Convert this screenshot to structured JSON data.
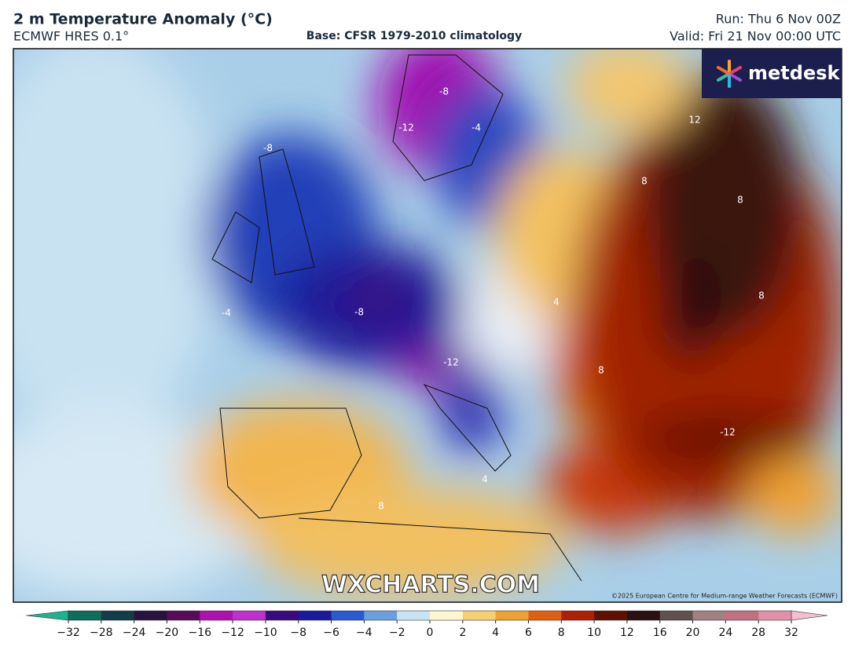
{
  "header": {
    "title": "2 m Temperature Anomaly (°C)",
    "model": "ECMWF HRES 0.1°",
    "base": "Base: CFSR 1979-2010 climatology",
    "run": "Run: Thu 6 Nov 00Z",
    "valid": "Valid: Fri 21 Nov 00:00 UTC"
  },
  "logo": "metdesk",
  "watermark": "WXCHARTS.COM",
  "copyright": "©2025 European Centre for Medium-range Weather Forecasts (ECMWF)",
  "map": {
    "contour_labels": [
      "12",
      "-12",
      "-8",
      "-4",
      "-8",
      "-8",
      "8",
      "8",
      "8",
      "-12",
      "-12",
      "4",
      "-4",
      "8",
      "4",
      "8"
    ]
  },
  "colorbar": {
    "ticks": [
      {
        "value": -32,
        "label": "−32"
      },
      {
        "value": -28,
        "label": "−28"
      },
      {
        "value": -24,
        "label": "−24"
      },
      {
        "value": -20,
        "label": "−20"
      },
      {
        "value": -16,
        "label": "−16"
      },
      {
        "value": -12,
        "label": "−12"
      },
      {
        "value": -10,
        "label": "−10"
      },
      {
        "value": -8,
        "label": "−8"
      },
      {
        "value": -6,
        "label": "−6"
      },
      {
        "value": -4,
        "label": "−4"
      },
      {
        "value": -2,
        "label": "−2"
      },
      0,
      2,
      4,
      6,
      8,
      10,
      12,
      16,
      20,
      24,
      28,
      32
    ],
    "colors": [
      "#1db38c",
      "#0d6e5c",
      "#143d4a",
      "#2a1340",
      "#5a0a5a",
      "#b010b0",
      "#c030d0",
      "#3a0a80",
      "#1a1aa0",
      "#2a5ad0",
      "#6aa0e0",
      "#c8e4f4",
      "#fff6d0",
      "#f6d070",
      "#f0a030",
      "#e06010",
      "#b02000",
      "#601000",
      "#2a1010",
      "#605050",
      "#a08080",
      "#c07080",
      "#e090a8",
      "#f0c0d0"
    ]
  }
}
